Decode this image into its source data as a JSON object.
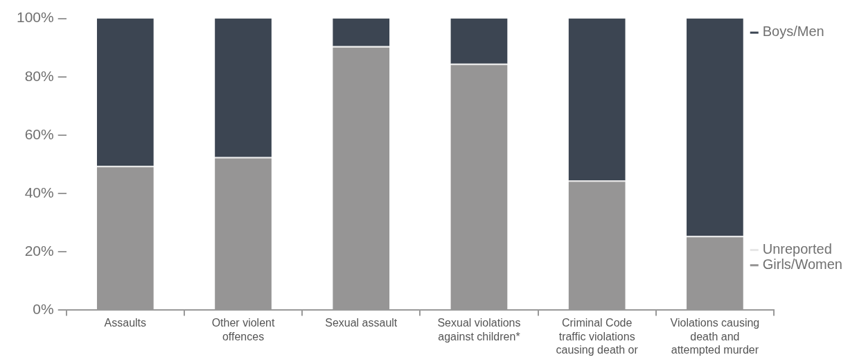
{
  "chart_data": {
    "type": "bar",
    "stacked": true,
    "legend": "right",
    "grid": false,
    "categories": [
      "Assaults",
      "Other violent offences",
      "Sexual assault",
      "Sexual violations against children*",
      "Criminal Code traffic violations causing death or",
      "Violations causing death and attempted murder"
    ],
    "series": [
      {
        "name": "Girls/Women",
        "color": "#969595",
        "values": [
          49,
          52,
          90,
          84,
          44,
          25
        ]
      },
      {
        "name": "Unreported",
        "color": "#e6e6e6",
        "values": [
          0.5,
          0.5,
          0.5,
          0.5,
          0.5,
          0.5
        ]
      },
      {
        "name": "Boys/Men",
        "color": "#3c4552",
        "values": [
          50.5,
          47.5,
          9.5,
          15.5,
          55.5,
          74.5
        ]
      }
    ],
    "ylim": [
      0,
      100
    ],
    "yticks": [
      {
        "value": 0,
        "label": "0%"
      },
      {
        "value": 20,
        "label": "20%"
      },
      {
        "value": 40,
        "label": "40%"
      },
      {
        "value": 60,
        "label": "60%"
      },
      {
        "value": 80,
        "label": "80%"
      },
      {
        "value": 100,
        "label": "100%"
      }
    ]
  }
}
